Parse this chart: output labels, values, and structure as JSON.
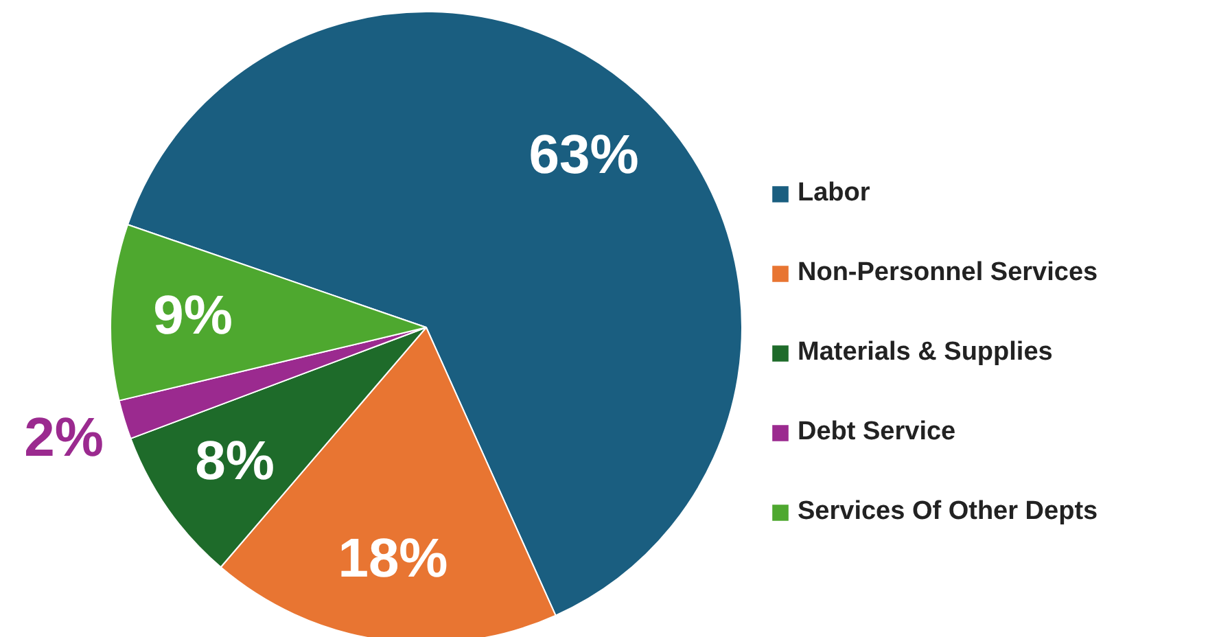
{
  "chart_data": {
    "type": "pie",
    "categories": [
      "Labor",
      "Non-Personnel Services",
      "Materials & Supplies",
      "Debt Service",
      "Services Of Other Depts"
    ],
    "values": [
      63,
      18,
      8,
      2,
      9
    ],
    "colors": [
      "#1a5e80",
      "#e87532",
      "#1e6b2a",
      "#9b2a8f",
      "#4ea82f"
    ],
    "value_labels": [
      "63%",
      "18%",
      "8%",
      "2%",
      "9%"
    ],
    "legend": "right"
  }
}
